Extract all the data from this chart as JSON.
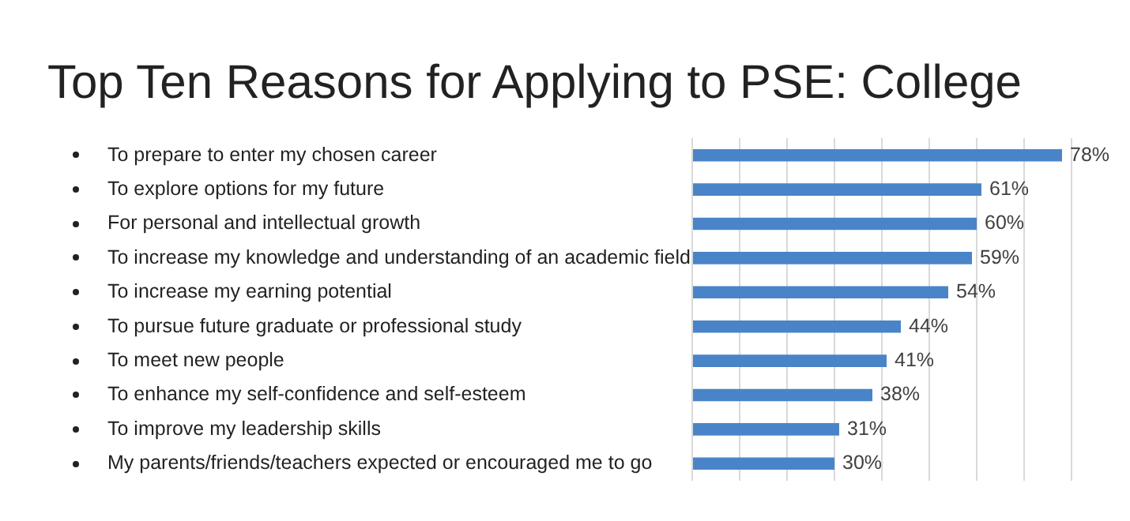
{
  "chart_data": {
    "type": "bar",
    "orientation": "horizontal",
    "title": "Top Ten Reasons for Applying to PSE: College",
    "categories": [
      "To prepare to enter my chosen career",
      "To explore options for my future",
      "For personal and intellectual growth",
      "To increase my knowledge and understanding of an academic field",
      "To increase my earning potential",
      "To pursue future graduate or professional study",
      "To meet new people",
      "To enhance my self-confidence and self-esteem",
      "To improve my leadership skills",
      "My parents/friends/teachers expected or encouraged me to go"
    ],
    "values": [
      78,
      61,
      60,
      59,
      54,
      44,
      41,
      38,
      31,
      30
    ],
    "value_labels": [
      "78%",
      "61%",
      "60%",
      "59%",
      "54%",
      "44%",
      "41%",
      "38%",
      "31%",
      "30%"
    ],
    "color": "#4a84c8",
    "xlim": [
      0,
      80
    ],
    "xticks": [
      {
        "value": 0,
        "label": null
      },
      {
        "value": 10,
        "label": null
      },
      {
        "value": 20,
        "label": null
      },
      {
        "value": 30,
        "label": null
      },
      {
        "value": 40,
        "label": null
      },
      {
        "value": 50,
        "label": null
      },
      {
        "value": 60,
        "label": null
      },
      {
        "value": 70,
        "label": null
      },
      {
        "value": 80,
        "label": null
      }
    ],
    "grid": "x",
    "tick_labels": "y"
  }
}
